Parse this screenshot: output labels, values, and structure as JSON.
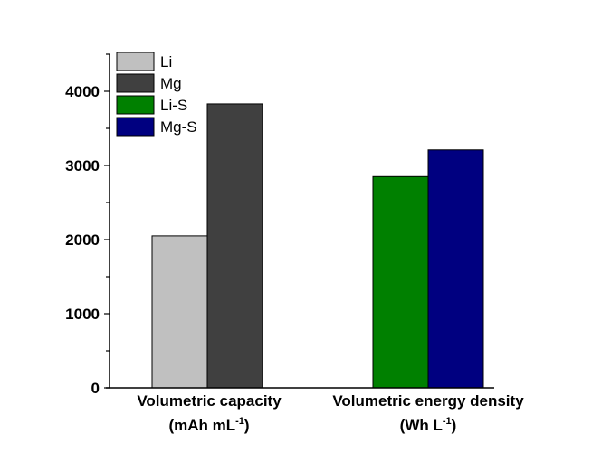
{
  "chart_data": {
    "type": "bar",
    "title": "",
    "xlabel": "",
    "ylabel": "",
    "ylim": [
      0,
      4500
    ],
    "yticks": [
      0,
      1000,
      2000,
      3000,
      4000
    ],
    "ytick_labels": [
      "0",
      "1000",
      "2000",
      "3000",
      "4000"
    ],
    "minor_tick_step": 500,
    "grid": false,
    "legend_position": "top-left",
    "categories": [
      {
        "line1": "Volumetric capacity",
        "line2_prefix": "(mAh mL",
        "sup": "-1",
        "line2_suffix": ")"
      },
      {
        "line1": "Volumetric energy density",
        "line2_prefix": "(Wh L",
        "sup": "-1",
        "line2_suffix": ")"
      }
    ],
    "series": [
      {
        "name": "Li",
        "category": 0,
        "value": 2050,
        "color": "#c0c0c0"
      },
      {
        "name": "Mg",
        "category": 0,
        "value": 3830,
        "color": "#404040"
      },
      {
        "name": "Li-S",
        "category": 1,
        "value": 2850,
        "color": "#008000"
      },
      {
        "name": "Mg-S",
        "category": 1,
        "value": 3210,
        "color": "#000080"
      }
    ]
  }
}
